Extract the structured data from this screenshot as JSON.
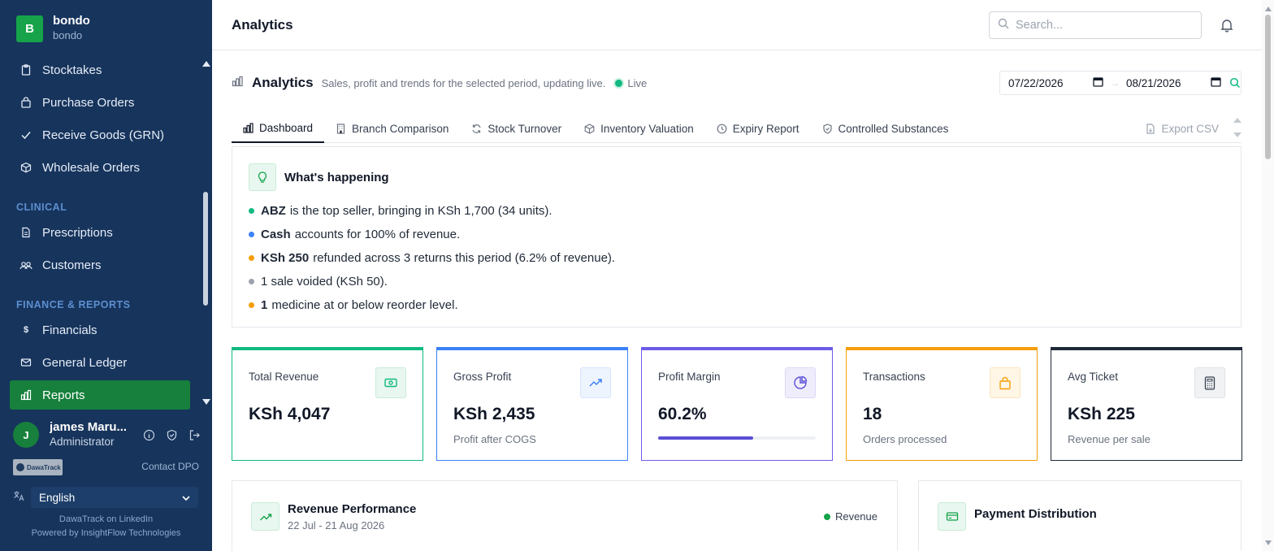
{
  "brand": {
    "initial": "B",
    "name": "bondo",
    "sub": "bondo"
  },
  "sidebar": {
    "items_top": [
      {
        "label": "Stocktakes",
        "icon": "clipboard-icon"
      },
      {
        "label": "Purchase Orders",
        "icon": "bag-icon"
      },
      {
        "label": "Receive Goods (GRN)",
        "icon": "check-icon"
      },
      {
        "label": "Wholesale Orders",
        "icon": "box-icon"
      }
    ],
    "section_clinical": "CLINICAL",
    "items_clinical": [
      {
        "label": "Prescriptions",
        "icon": "document-icon"
      },
      {
        "label": "Customers",
        "icon": "users-icon"
      }
    ],
    "section_finance": "FINANCE & REPORTS",
    "items_finance": [
      {
        "label": "Financials",
        "icon": "dollar-icon"
      },
      {
        "label": "General Ledger",
        "icon": "mail-icon"
      },
      {
        "label": "Reports",
        "icon": "chart-icon",
        "active": true
      }
    ]
  },
  "user": {
    "initial": "J",
    "name": "james Maru...",
    "role": "Administrator"
  },
  "partner_logo_text": "DawaTrack",
  "contact": "Contact DPO",
  "language": "English",
  "footer": {
    "line1": "DawaTrack on LinkedIn",
    "line2": "Powered by InsightFlow Technologies"
  },
  "header": {
    "title": "Analytics",
    "search_placeholder": "Search..."
  },
  "analytics": {
    "title": "Analytics",
    "description": "Sales, profit and trends for the selected period, updating live.",
    "live": "Live",
    "date_from": "07/22/2026",
    "date_to": "08/21/2026"
  },
  "tabs": [
    {
      "label": "Dashboard",
      "icon": "chart-icon",
      "active": true
    },
    {
      "label": "Branch Comparison",
      "icon": "building-icon"
    },
    {
      "label": "Stock Turnover",
      "icon": "refresh-icon"
    },
    {
      "label": "Inventory Valuation",
      "icon": "box-icon"
    },
    {
      "label": "Expiry Report",
      "icon": "clock-icon"
    },
    {
      "label": "Controlled Substances",
      "icon": "shield-icon"
    }
  ],
  "export_label": "Export CSV",
  "insights": {
    "title": "What's happening",
    "items": [
      {
        "bold": "ABZ",
        "text": "is the top seller, bringing in KSh 1,700 (34 units).",
        "color": "#10b981"
      },
      {
        "bold": "Cash",
        "text": "accounts for 100% of revenue.",
        "color": "#3b82f6"
      },
      {
        "bold": "KSh 250",
        "text": "refunded across 3 returns this period (6.2% of revenue).",
        "color": "#f59e0b"
      },
      {
        "bold": "",
        "text": "1 sale voided (KSh 50).",
        "color": "#9ca3af"
      },
      {
        "bold": "1",
        "text": "medicine at or below reorder level.",
        "color": "#f59e0b"
      }
    ]
  },
  "kpis": [
    {
      "label": "Total Revenue",
      "value": "KSh 4,047",
      "sub": "",
      "color": "#10b981",
      "icon": "cash-icon"
    },
    {
      "label": "Gross Profit",
      "value": "KSh 2,435",
      "sub": "Profit after COGS",
      "color": "#3b82f6",
      "icon": "trending-up-icon"
    },
    {
      "label": "Profit Margin",
      "value": "60.2%",
      "sub": "",
      "color": "#6d5ce7",
      "icon": "pie-chart-icon",
      "progress": 0.602
    },
    {
      "label": "Transactions",
      "value": "18",
      "sub": "Orders processed",
      "color": "#f59e0b",
      "icon": "shopping-bag-icon"
    },
    {
      "label": "Avg Ticket",
      "value": "KSh 225",
      "sub": "Revenue per sale",
      "color": "#1f2937",
      "icon": "calculator-icon"
    }
  ],
  "revenue_panel": {
    "title": "Revenue Performance",
    "subtitle": "22 Jul - 21 Aug 2026",
    "legend": "Revenue"
  },
  "payment_panel": {
    "title": "Payment Distribution"
  }
}
